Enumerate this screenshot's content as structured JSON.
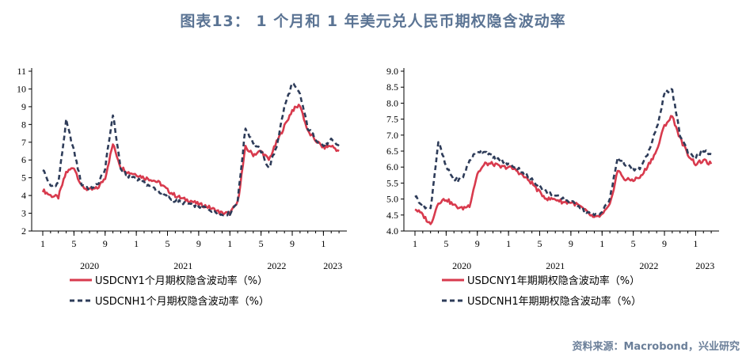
{
  "figure_title": "图表13： 1 个月和 1 年美元兑人民币期权隐含波动率",
  "source_note": "资料来源：Macrobond，兴业研究",
  "colors": {
    "cny": "#d83a4d",
    "cnh": "#2e3c59",
    "title": "#5b7494",
    "source": "#6b7f99"
  },
  "chart_data": [
    {
      "type": "line",
      "title": "",
      "xlabel": "",
      "ylabel": "",
      "ylim": [
        2,
        11
      ],
      "y_ticks": [
        "2",
        "3",
        "4",
        "5",
        "6",
        "7",
        "8",
        "9",
        "10",
        "11"
      ],
      "x_tick_labels": [
        "1",
        "5",
        "9",
        "1",
        "5",
        "9",
        "1",
        "5",
        "9",
        "1"
      ],
      "year_labels": [
        "2020",
        "2021",
        "2022",
        "2023"
      ],
      "grid": false,
      "legend_position": "bottom",
      "x": [
        "2020-01",
        "2020-02",
        "2020-03",
        "2020-04",
        "2020-05",
        "2020-06",
        "2020-07",
        "2020-08",
        "2020-09",
        "2020-10",
        "2020-11",
        "2020-12",
        "2021-01",
        "2021-02",
        "2021-03",
        "2021-04",
        "2021-05",
        "2021-06",
        "2021-07",
        "2021-08",
        "2021-09",
        "2021-10",
        "2021-11",
        "2021-12",
        "2022-01",
        "2022-02",
        "2022-03",
        "2022-04",
        "2022-05",
        "2022-06",
        "2022-07",
        "2022-08",
        "2022-09",
        "2022-10",
        "2022-11",
        "2022-12",
        "2023-01",
        "2023-02",
        "2023-03"
      ],
      "series": [
        {
          "name": "USDCNY1个月期权隐含波动率（%）",
          "style": "solid",
          "values": [
            4.3,
            4.0,
            3.9,
            5.3,
            5.6,
            4.5,
            4.3,
            4.4,
            5.0,
            6.9,
            5.6,
            5.3,
            5.2,
            5.0,
            4.9,
            4.7,
            4.3,
            4.0,
            3.8,
            3.7,
            3.5,
            3.4,
            3.2,
            3.0,
            3.0,
            3.6,
            6.7,
            6.3,
            6.5,
            6.0,
            7.0,
            7.9,
            8.8,
            9.1,
            7.6,
            7.1,
            6.7,
            6.8,
            6.5
          ]
        },
        {
          "name": "USDCNH1个月期权隐含波动率（%）",
          "style": "dashed",
          "values": [
            5.5,
            4.5,
            4.7,
            8.2,
            6.5,
            4.6,
            4.4,
            4.6,
            5.5,
            8.6,
            5.5,
            5.1,
            5.0,
            4.7,
            4.5,
            4.2,
            3.9,
            3.7,
            3.6,
            3.5,
            3.4,
            3.3,
            3.1,
            2.9,
            3.0,
            3.7,
            7.8,
            7.0,
            6.5,
            5.5,
            6.8,
            9.0,
            10.3,
            9.7,
            7.8,
            7.2,
            6.8,
            7.1,
            6.8
          ]
        }
      ]
    },
    {
      "type": "line",
      "title": "",
      "xlabel": "",
      "ylabel": "",
      "ylim": [
        4.0,
        9.0
      ],
      "y_ticks": [
        "4.0",
        "4.5",
        "5.0",
        "5.5",
        "6.0",
        "6.5",
        "7.0",
        "7.5",
        "8.0",
        "8.5",
        "9.0"
      ],
      "x_tick_labels": [
        "1",
        "5",
        "9",
        "1",
        "5",
        "9",
        "1",
        "5",
        "9",
        "1"
      ],
      "year_labels": [
        "2020",
        "2021",
        "2022",
        "2023"
      ],
      "grid": false,
      "legend_position": "bottom",
      "x": [
        "2020-01",
        "2020-02",
        "2020-03",
        "2020-04",
        "2020-05",
        "2020-06",
        "2020-07",
        "2020-08",
        "2020-09",
        "2020-10",
        "2020-11",
        "2020-12",
        "2021-01",
        "2021-02",
        "2021-03",
        "2021-04",
        "2021-05",
        "2021-06",
        "2021-07",
        "2021-08",
        "2021-09",
        "2021-10",
        "2021-11",
        "2021-12",
        "2022-01",
        "2022-02",
        "2022-03",
        "2022-04",
        "2022-05",
        "2022-06",
        "2022-07",
        "2022-08",
        "2022-09",
        "2022-10",
        "2022-11",
        "2022-12",
        "2023-01",
        "2023-02",
        "2023-03"
      ],
      "series": [
        {
          "name": "USDCNY1年期期权隐含波动率（%）",
          "style": "solid",
          "values": [
            4.7,
            4.5,
            4.2,
            4.9,
            5.0,
            4.8,
            4.7,
            4.8,
            5.8,
            6.1,
            6.1,
            6.0,
            6.0,
            5.9,
            5.7,
            5.5,
            5.2,
            5.0,
            5.0,
            4.9,
            4.9,
            4.8,
            4.6,
            4.4,
            4.5,
            4.8,
            5.9,
            5.6,
            5.6,
            5.7,
            6.1,
            6.5,
            7.3,
            7.6,
            6.9,
            6.4,
            6.1,
            6.2,
            6.1
          ]
        },
        {
          "name": "USDCNH1年期期权隐含波动率（%）",
          "style": "dashed",
          "values": [
            5.1,
            4.8,
            4.7,
            6.8,
            6.0,
            5.6,
            5.6,
            6.2,
            6.5,
            6.5,
            6.3,
            6.2,
            6.1,
            6.0,
            5.8,
            5.6,
            5.4,
            5.2,
            5.1,
            5.0,
            4.9,
            4.8,
            4.6,
            4.5,
            4.6,
            5.0,
            6.3,
            6.1,
            5.9,
            6.0,
            6.5,
            7.2,
            8.3,
            8.4,
            7.0,
            6.5,
            6.3,
            6.5,
            6.4
          ]
        }
      ]
    }
  ]
}
